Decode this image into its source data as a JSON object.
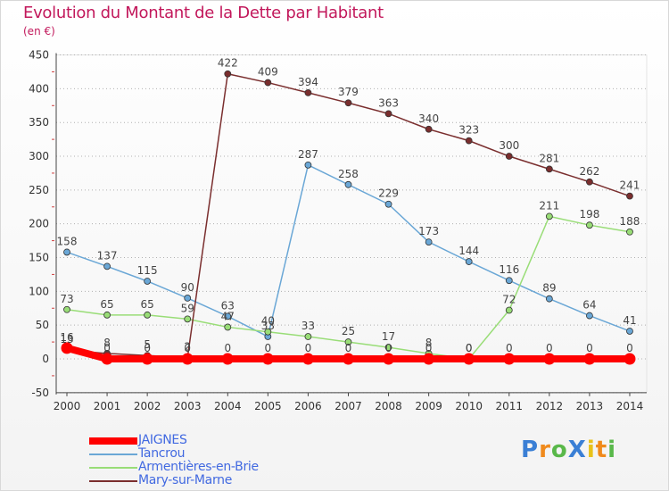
{
  "title": "Evolution du Montant de la Dette par Habitant",
  "unit": "(en €)",
  "logo": "ProXiti",
  "colors": {
    "title": "#c2185b",
    "grid": "#aaaaaa",
    "legend_text": "#4169e1"
  },
  "chart_data": {
    "type": "line",
    "title": "Evolution du Montant de la Dette par Habitant",
    "ylabel": "(en €)",
    "xlabel": "",
    "ylim": [
      -50,
      450
    ],
    "yticks": [
      -50,
      0,
      50,
      100,
      150,
      200,
      250,
      300,
      350,
      400,
      450
    ],
    "x": [
      "2000",
      "2001",
      "2002",
      "2003",
      "2004",
      "2005",
      "2006",
      "2007",
      "2008",
      "2009",
      "2010",
      "2011",
      "2012",
      "2013",
      "2014"
    ],
    "grid": "horizontal dotted",
    "legend_position": "bottom-left",
    "series": [
      {
        "name": "JAIGNES",
        "color": "#ff0000",
        "values": [
          16,
          0,
          0,
          0,
          0,
          0,
          0,
          0,
          0,
          0,
          0,
          0,
          0,
          0,
          0
        ]
      },
      {
        "name": "Tancrou",
        "color": "#6aa7d6",
        "values": [
          158,
          137,
          115,
          90,
          63,
          33,
          287,
          258,
          229,
          173,
          144,
          116,
          89,
          64,
          41
        ]
      },
      {
        "name": "Armentières-en-Brie",
        "color": "#99dd77",
        "values": [
          73,
          65,
          65,
          59,
          47,
          40,
          33,
          25,
          17,
          8,
          0,
          72,
          211,
          198,
          188
        ]
      },
      {
        "name": "Mary-sur-Marne",
        "color": "#7a2e2e",
        "values": [
          13,
          8,
          5,
          2,
          422,
          409,
          394,
          379,
          363,
          340,
          323,
          300,
          281,
          262,
          241
        ]
      }
    ]
  }
}
